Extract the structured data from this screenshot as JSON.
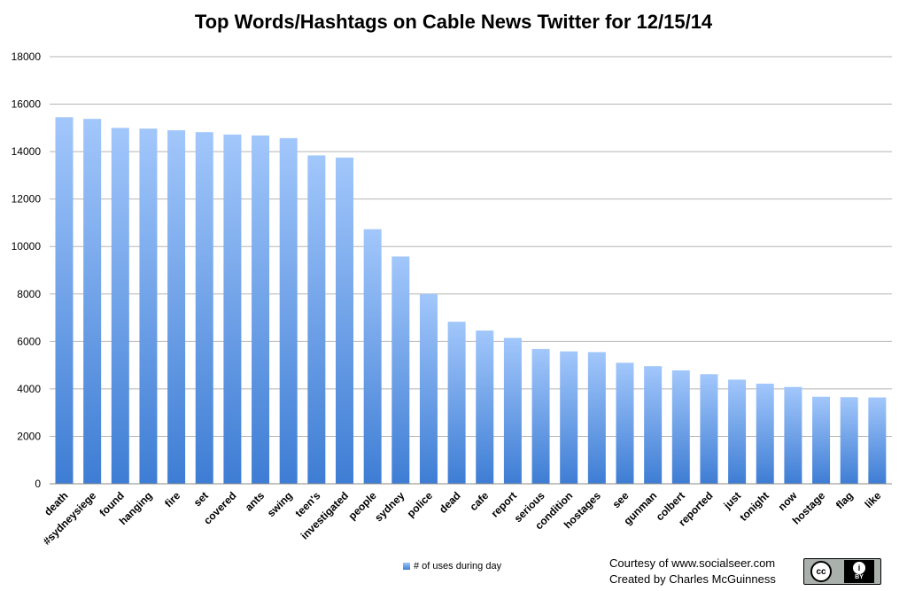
{
  "chart_data": {
    "type": "bar",
    "title": "Top Words/Hashtags on Cable News Twitter for 12/15/14",
    "categories": [
      "death",
      "#sydneysiege",
      "found",
      "hanging",
      "fire",
      "set",
      "covered",
      "ants",
      "swing",
      "teen's",
      "investigated",
      "people",
      "sydney",
      "police",
      "dead",
      "cafe",
      "report",
      "serious",
      "condition",
      "hostages",
      "see",
      "gunman",
      "colbert",
      "reported",
      "just",
      "tonight",
      "now",
      "hostage",
      "flag",
      "like"
    ],
    "series": [
      {
        "name": "# of uses during day",
        "values": [
          15450,
          15380,
          15000,
          14970,
          14900,
          14820,
          14720,
          14680,
          14570,
          13840,
          13750,
          10730,
          9580,
          8000,
          6830,
          6460,
          6150,
          5680,
          5580,
          5550,
          5100,
          4960,
          4780,
          4620,
          4390,
          4220,
          4080,
          3670,
          3650,
          3640
        ]
      }
    ],
    "ylim": [
      0,
      18000
    ],
    "yticks": [
      "0",
      "2000",
      "4000",
      "6000",
      "8000",
      "10000",
      "12000",
      "14000",
      "16000",
      "18000"
    ],
    "grid": true,
    "legend": "bottom"
  },
  "credits": {
    "line1": "Courtesy of www.socialseer.com",
    "line2": "Created by Charles McGuinness"
  },
  "license_badge": {
    "icon": "creative-commons-by-icon",
    "cc_text": "cc",
    "by_text": "BY",
    "person_glyph": "i"
  }
}
